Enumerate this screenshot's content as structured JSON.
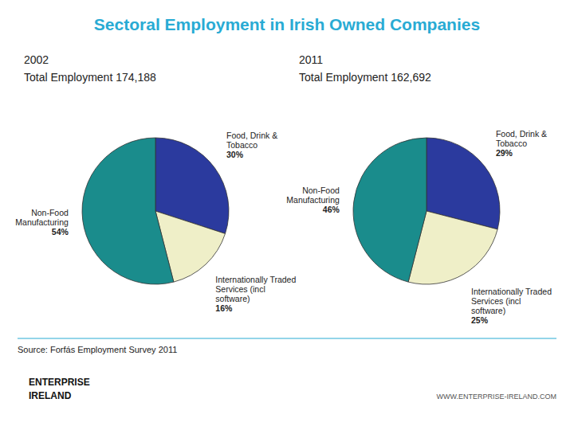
{
  "title": "Sectoral Employment in Irish Owned Companies",
  "annotations": [
    "Source: Forfás Employment Survey 2011",
    "ENTERPRISE",
    "IRELAND",
    "WWW.ENTERPRISE-IRELAND.COM"
  ],
  "chart_data": [
    {
      "type": "pie",
      "title": "2002",
      "subtitle": "Total Employment 174,188",
      "categories": [
        "Food, Drink &\nTobacco",
        "Internationally Traded\nServices (incl\nsoftware)",
        "Non-Food\nManufacturing"
      ],
      "values": [
        30,
        16,
        54
      ],
      "value_labels": [
        "30%",
        "16%",
        "54%"
      ],
      "colors": [
        "#2B3A9E",
        "#EFEFC8",
        "#1A8C8C"
      ],
      "data_labels": true
    },
    {
      "type": "pie",
      "title": "2011",
      "subtitle": "Total Employment 162,692",
      "categories": [
        "Food, Drink &\nTobacco",
        "Internationally Traded\nServices (incl\nsoftware)",
        "Non-Food\nManufacturing"
      ],
      "values": [
        29,
        25,
        46
      ],
      "value_labels": [
        "29%",
        "25%",
        "46%"
      ],
      "colors": [
        "#2B3A9E",
        "#EFEFC8",
        "#1A8C8C"
      ],
      "data_labels": true
    }
  ]
}
